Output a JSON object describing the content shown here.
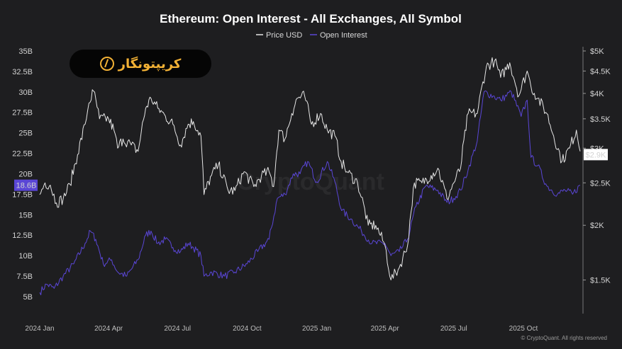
{
  "brand": {
    "logo_text": "کریپتونگار"
  },
  "credit": "© CryptoQuant. All rights reserved",
  "watermark": "CryptoQuant",
  "chart_data": {
    "type": "line",
    "title": "Ethereum: Open Interest - All Exchanges, All Symbol",
    "legend": [
      "Price USD",
      "Open Interest"
    ],
    "legend_placement": "top-center",
    "grid": false,
    "x_ticks": [
      "2024 Jan",
      "2024 Apr",
      "2024 Jul",
      "2024 Oct",
      "2025 Jan",
      "2025 Apr",
      "2025 Jul",
      "2025 Oct"
    ],
    "x_range": [
      "2024-01-01",
      "2025-12-15"
    ],
    "left_axis": {
      "ticks": [
        "35B",
        "32.5B",
        "30B",
        "27.5B",
        "25B",
        "22.5B",
        "20B",
        "17.5B",
        "15B",
        "12.5B",
        "10B",
        "7.5B",
        "5B"
      ],
      "range": [
        3.7,
        35
      ],
      "current_label": "18.6B",
      "current_value": 18.6
    },
    "right_axis": {
      "scale": "log",
      "ticks": [
        "$5K",
        "$4.5K",
        "$4K",
        "$3.5K",
        "$3K",
        "$2.5K",
        "$2K",
        "$1.5K"
      ],
      "range": [
        1300,
        5000
      ],
      "current_label": "$2.9K",
      "current_value": 2900
    },
    "series": [
      {
        "name": "Price USD",
        "color": "#e6e6e6",
        "axis": "right",
        "x": [
          "2024-01-01",
          "2024-01-08",
          "2024-01-15",
          "2024-01-23",
          "2024-02-01",
          "2024-02-10",
          "2024-02-20",
          "2024-03-01",
          "2024-03-06",
          "2024-03-12",
          "2024-03-20",
          "2024-04-01",
          "2024-04-08",
          "2024-04-13",
          "2024-04-20",
          "2024-05-01",
          "2024-05-10",
          "2024-05-20",
          "2024-05-27",
          "2024-06-05",
          "2024-06-15",
          "2024-06-25",
          "2024-07-05",
          "2024-07-15",
          "2024-07-22",
          "2024-08-01",
          "2024-08-05",
          "2024-08-15",
          "2024-08-24",
          "2024-09-06",
          "2024-09-15",
          "2024-09-27",
          "2024-10-10",
          "2024-10-20",
          "2024-10-30",
          "2024-11-05",
          "2024-11-12",
          "2024-11-20",
          "2024-11-29",
          "2024-12-06",
          "2024-12-16",
          "2024-12-25",
          "2025-01-06",
          "2025-01-15",
          "2025-01-25",
          "2025-02-02",
          "2025-02-10",
          "2025-02-24",
          "2025-03-10",
          "2025-03-20",
          "2025-04-01",
          "2025-04-09",
          "2025-04-20",
          "2025-05-01",
          "2025-05-10",
          "2025-05-20",
          "2025-06-01",
          "2025-06-10",
          "2025-06-22",
          "2025-07-01",
          "2025-07-10",
          "2025-07-20",
          "2025-08-01",
          "2025-08-13",
          "2025-08-24",
          "2025-09-01",
          "2025-09-13",
          "2025-09-25",
          "2025-10-06",
          "2025-10-11",
          "2025-10-20",
          "2025-11-01",
          "2025-11-10",
          "2025-11-21",
          "2025-12-01",
          "2025-12-10",
          "2025-12-15"
        ],
        "values": [
          2350,
          2500,
          2470,
          2250,
          2300,
          2480,
          2900,
          3400,
          3800,
          4050,
          3500,
          3500,
          3300,
          3000,
          3150,
          3050,
          2950,
          3700,
          3900,
          3700,
          3550,
          3400,
          3050,
          3400,
          3450,
          3200,
          2350,
          2600,
          2750,
          2400,
          2400,
          2650,
          2450,
          2600,
          2650,
          2450,
          3300,
          3150,
          3600,
          3900,
          3950,
          3400,
          3600,
          3300,
          3200,
          2800,
          2650,
          2500,
          2000,
          2000,
          1800,
          1500,
          1600,
          1800,
          2500,
          2500,
          2600,
          2700,
          2300,
          2500,
          2700,
          3600,
          3600,
          4600,
          4750,
          4350,
          4700,
          3950,
          4500,
          4150,
          3900,
          3600,
          3200,
          2800,
          3000,
          3300,
          2950
        ]
      },
      {
        "name": "Open Interest",
        "color": "#5a46d6",
        "axis": "left",
        "x": [
          "2024-01-01",
          "2024-01-10",
          "2024-01-20",
          "2024-02-01",
          "2024-02-15",
          "2024-03-01",
          "2024-03-08",
          "2024-03-15",
          "2024-03-25",
          "2024-04-05",
          "2024-04-13",
          "2024-04-25",
          "2024-05-10",
          "2024-05-20",
          "2024-05-27",
          "2024-06-05",
          "2024-06-15",
          "2024-06-25",
          "2024-07-05",
          "2024-07-15",
          "2024-07-22",
          "2024-08-01",
          "2024-08-05",
          "2024-08-15",
          "2024-09-01",
          "2024-09-15",
          "2024-10-01",
          "2024-10-15",
          "2024-10-30",
          "2024-11-10",
          "2024-11-20",
          "2024-12-01",
          "2024-12-10",
          "2024-12-20",
          "2025-01-01",
          "2025-01-15",
          "2025-01-25",
          "2025-02-03",
          "2025-02-15",
          "2025-03-01",
          "2025-03-15",
          "2025-04-01",
          "2025-04-09",
          "2025-04-20",
          "2025-05-01",
          "2025-05-12",
          "2025-05-25",
          "2025-06-10",
          "2025-06-22",
          "2025-07-01",
          "2025-07-10",
          "2025-07-20",
          "2025-08-01",
          "2025-08-10",
          "2025-08-22",
          "2025-09-01",
          "2025-09-15",
          "2025-09-28",
          "2025-10-06",
          "2025-10-11",
          "2025-10-20",
          "2025-11-01",
          "2025-11-15",
          "2025-11-25",
          "2025-12-05",
          "2025-12-15"
        ],
        "values": [
          5.5,
          6.5,
          6.0,
          7.5,
          9.0,
          11.5,
          13.0,
          12.0,
          9.0,
          9.5,
          8.0,
          7.5,
          9.5,
          12.5,
          13.0,
          11.5,
          12.0,
          11.0,
          10.5,
          11.5,
          11.0,
          10.0,
          7.5,
          8.0,
          7.5,
          8.0,
          9.0,
          10.5,
          12.0,
          17.0,
          17.5,
          20.0,
          20.0,
          21.5,
          19.0,
          21.5,
          19.0,
          15.5,
          14.5,
          13.0,
          11.5,
          11.5,
          10.0,
          10.5,
          12.0,
          16.0,
          18.5,
          18.0,
          16.5,
          17.0,
          18.0,
          20.5,
          24.0,
          30.0,
          29.5,
          29.0,
          30.0,
          27.0,
          29.0,
          22.0,
          21.0,
          18.5,
          17.5,
          18.0,
          17.5,
          18.6
        ]
      }
    ]
  }
}
